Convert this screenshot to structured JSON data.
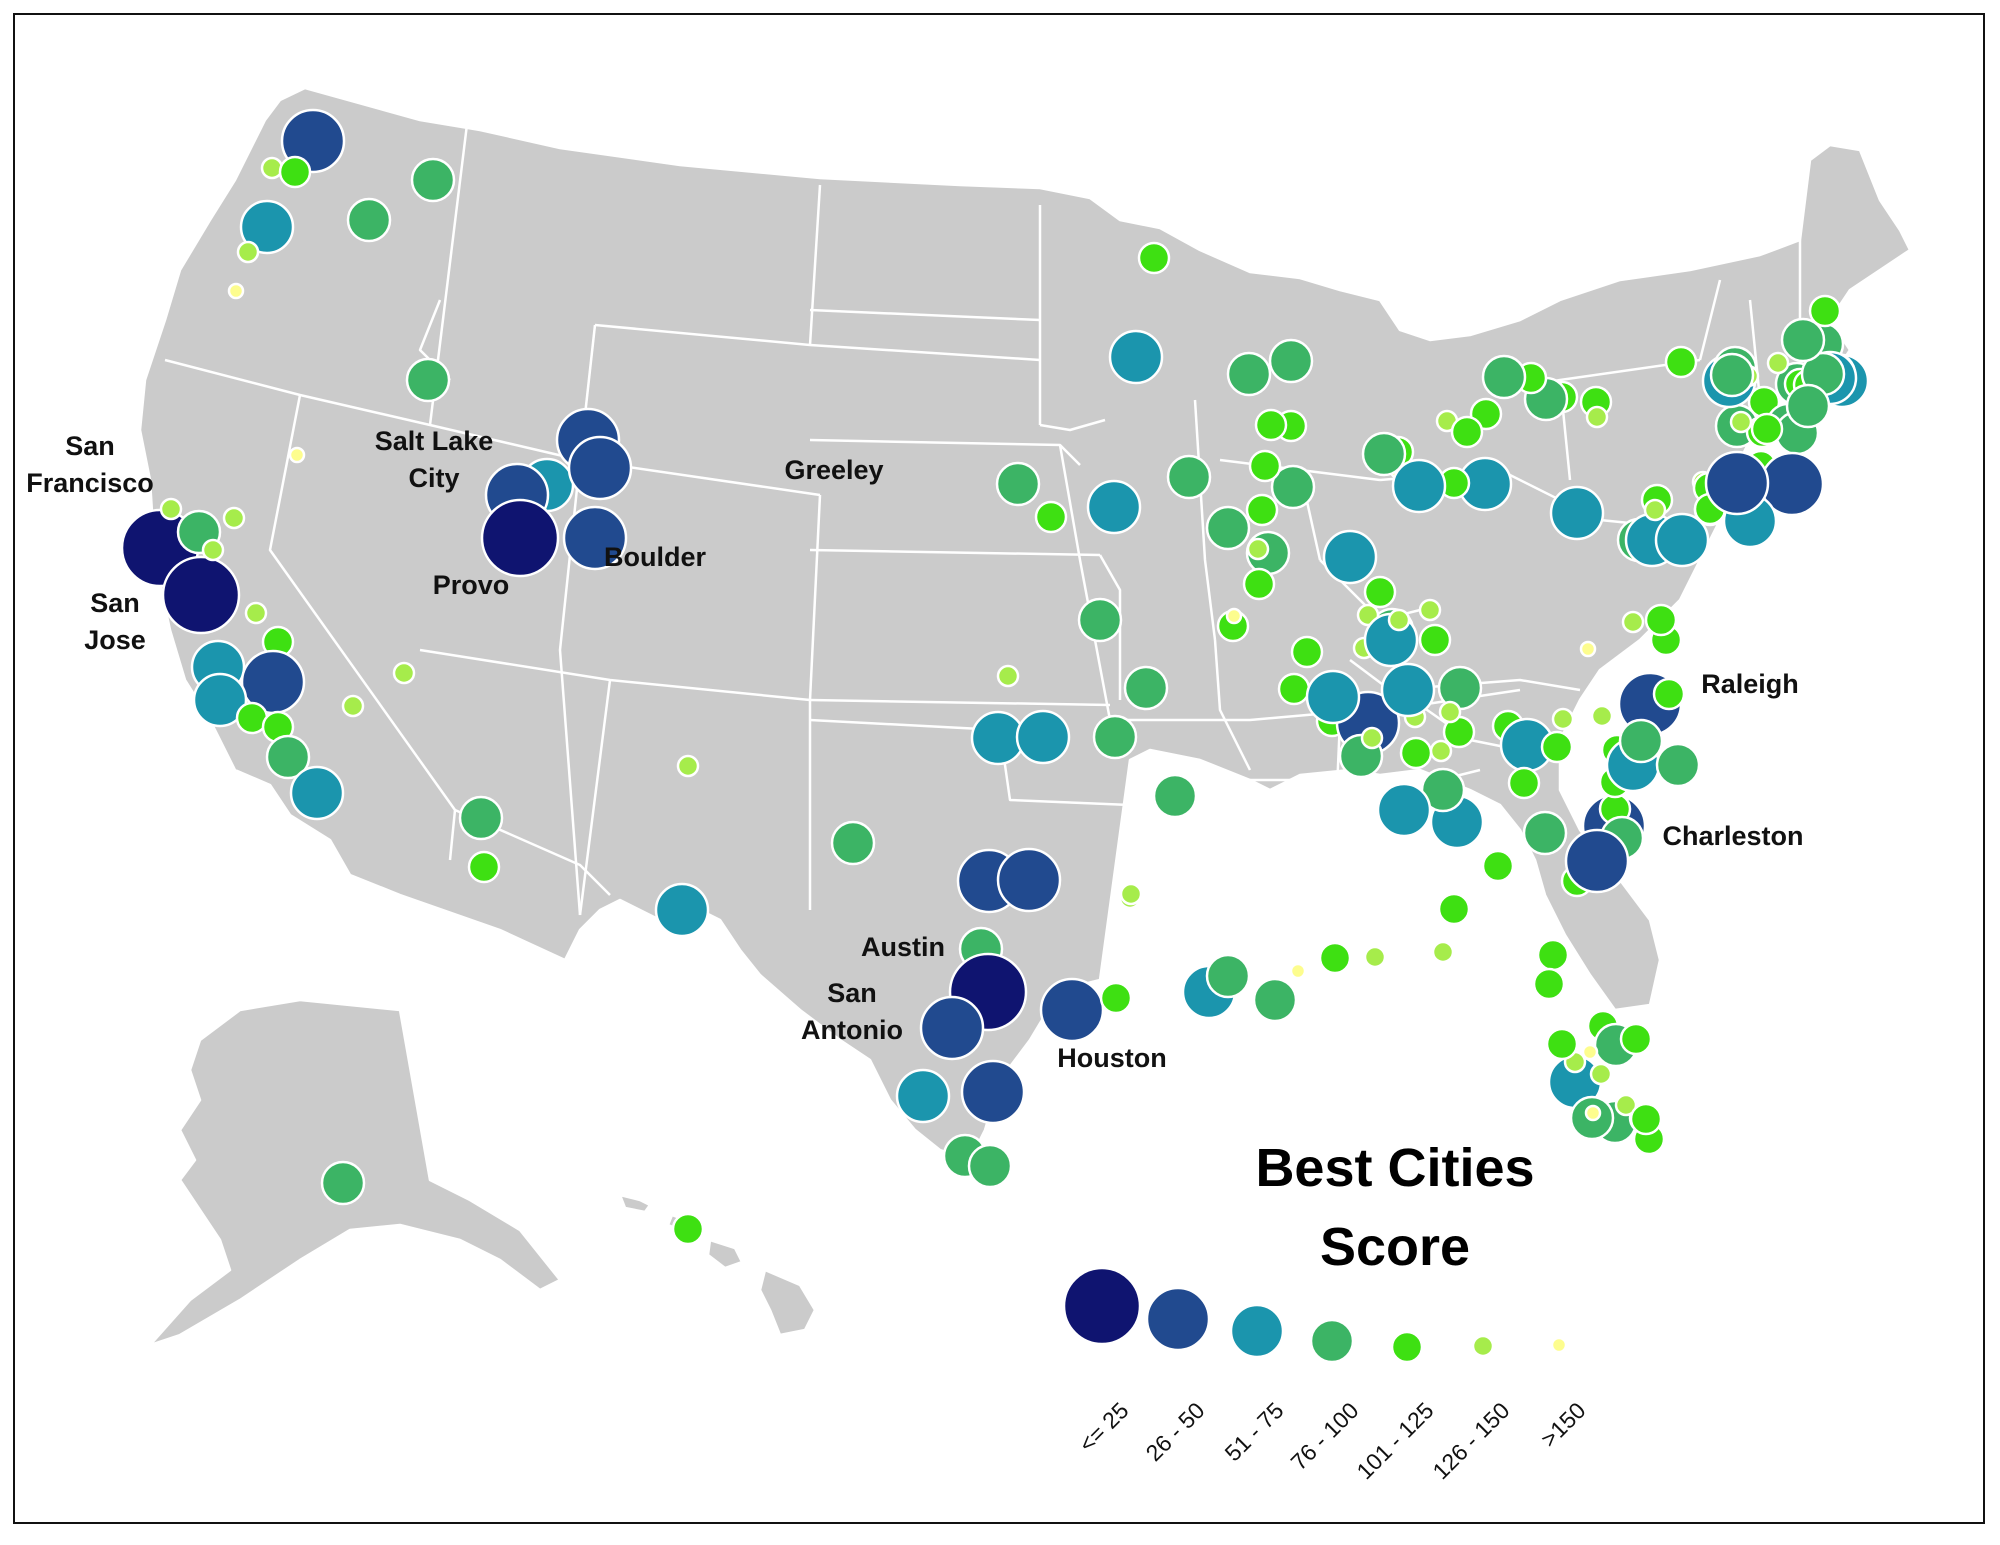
{
  "legend": {
    "title_line1": "Best Cities",
    "title_line2": "Score",
    "classes": [
      {
        "label": "<= 25",
        "color": "#0f1470"
      },
      {
        "label": "26 - 50",
        "color": "#214a8f"
      },
      {
        "label": "51 - 75",
        "color": "#1b95ad"
      },
      {
        "label": "76 - 100",
        "color": "#3cb465"
      },
      {
        "label": "101 - 125",
        "color": "#3ee012"
      },
      {
        "label": "126 - 150",
        "color": "#a6ec4b"
      },
      {
        "label": ">150",
        "color": "#fdfd8e"
      }
    ]
  },
  "labeled_cities": [
    {
      "name": "San Francisco",
      "lines": [
        "San",
        "Francisco"
      ]
    },
    {
      "name": "San Jose",
      "lines": [
        "San",
        "Jose"
      ]
    },
    {
      "name": "Salt Lake City",
      "lines": [
        "Salt Lake",
        "City"
      ]
    },
    {
      "name": "Provo",
      "lines": [
        "Provo"
      ]
    },
    {
      "name": "Greeley",
      "lines": [
        "Greeley"
      ]
    },
    {
      "name": "Boulder",
      "lines": [
        "Boulder"
      ]
    },
    {
      "name": "Raleigh",
      "lines": [
        "Raleigh"
      ]
    },
    {
      "name": "Charleston",
      "lines": [
        "Charleston"
      ]
    },
    {
      "name": "Austin",
      "lines": [
        "Austin"
      ]
    },
    {
      "name": "San Antonio",
      "lines": [
        "San",
        "Antonio"
      ]
    },
    {
      "name": "Houston",
      "lines": [
        "Houston"
      ]
    }
  ]
}
